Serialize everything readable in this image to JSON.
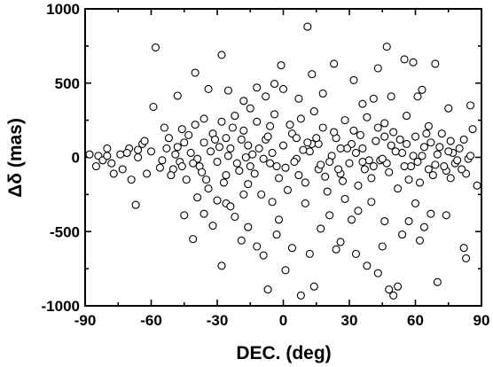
{
  "chart_data": {
    "type": "scatter",
    "title": "",
    "xlabel": "DEC. (deg)",
    "ylabel": "Δδ (mas)",
    "xlim": [
      -90,
      90
    ],
    "ylim": [
      -1000,
      1000
    ],
    "xticks": [
      "-90",
      "-60",
      "-30",
      "0",
      "30",
      "60",
      "90"
    ],
    "yticks": [
      "1000",
      "500",
      "0",
      "-500",
      "-1000"
    ],
    "xtick_values": [
      -90,
      -60,
      -30,
      0,
      30,
      60,
      90
    ],
    "ytick_values": [
      1000,
      500,
      0,
      -500,
      -1000
    ],
    "marker": "open-circle",
    "grid": false,
    "series": [
      {
        "points": [
          [
            -58,
            740
          ],
          [
            11,
            880
          ],
          [
            47,
            745
          ],
          [
            -28,
            690
          ],
          [
            55,
            660
          ],
          [
            69,
            630
          ],
          [
            23,
            630
          ],
          [
            -1,
            620
          ],
          [
            -40,
            570
          ],
          [
            43,
            600
          ],
          [
            59,
            640
          ],
          [
            -4,
            495
          ],
          [
            32,
            520
          ],
          [
            -12,
            470
          ],
          [
            -25,
            450
          ],
          [
            -48,
            415
          ],
          [
            49,
            410
          ],
          [
            13,
            560
          ],
          [
            -18,
            380
          ],
          [
            7,
            395
          ],
          [
            63,
            455
          ],
          [
            85,
            350
          ],
          [
            36,
            360
          ],
          [
            -59,
            340
          ],
          [
            -34,
            460
          ],
          [
            18,
            430
          ],
          [
            0,
            460
          ],
          [
            -8,
            410
          ],
          [
            41,
            395
          ],
          [
            61,
            410
          ],
          [
            75,
            330
          ],
          [
            -15,
            330
          ],
          [
            -85,
            -60
          ],
          [
            -78,
            -40
          ],
          [
            -80,
            60
          ],
          [
            -74,
            20
          ],
          [
            -70,
            60
          ],
          [
            -64,
            90
          ],
          [
            -84,
            10
          ],
          [
            -77,
            -110
          ],
          [
            -69,
            -150
          ],
          [
            -71,
            30
          ],
          [
            -82,
            -20
          ],
          [
            -66,
            0
          ],
          [
            -73,
            -80
          ],
          [
            -62,
            -110
          ],
          [
            -66,
            50
          ],
          [
            -80,
            10
          ],
          [
            -63,
            110
          ],
          [
            -88,
            20
          ],
          [
            -60,
            40
          ],
          [
            -55,
            -20
          ],
          [
            -52,
            130
          ],
          [
            -50,
            -80
          ],
          [
            -48,
            70
          ],
          [
            -46,
            190
          ],
          [
            -44,
            -150
          ],
          [
            -42,
            30
          ],
          [
            -40,
            220
          ],
          [
            -38,
            -60
          ],
          [
            -36,
            100
          ],
          [
            -34,
            -210
          ],
          [
            -32,
            160
          ],
          [
            -30,
            -30
          ],
          [
            -28,
            240
          ],
          [
            -26,
            -120
          ],
          [
            -24,
            60
          ],
          [
            -22,
            280
          ],
          [
            -20,
            -90
          ],
          [
            -18,
            180
          ],
          [
            -16,
            -180
          ],
          [
            -14,
            20
          ],
          [
            -12,
            240
          ],
          [
            -10,
            -250
          ],
          [
            -8,
            120
          ],
          [
            -6,
            -40
          ],
          [
            -4,
            290
          ],
          [
            -2,
            -140
          ],
          [
            0,
            80
          ],
          [
            2,
            -220
          ],
          [
            4,
            160
          ],
          [
            6,
            -10
          ],
          [
            8,
            260
          ],
          [
            10,
            -170
          ],
          [
            12,
            40
          ],
          [
            14,
            310
          ],
          [
            16,
            -80
          ],
          [
            18,
            200
          ],
          [
            20,
            -230
          ],
          [
            22,
            10
          ],
          [
            24,
            130
          ],
          [
            26,
            -110
          ],
          [
            28,
            250
          ],
          [
            30,
            -40
          ],
          [
            32,
            180
          ],
          [
            34,
            -190
          ],
          [
            36,
            60
          ],
          [
            38,
            270
          ],
          [
            40,
            -140
          ],
          [
            42,
            110
          ],
          [
            44,
            -20
          ],
          [
            46,
            230
          ],
          [
            48,
            -100
          ],
          [
            50,
            170
          ],
          [
            52,
            -210
          ],
          [
            54,
            30
          ],
          [
            56,
            280
          ],
          [
            58,
            -60
          ],
          [
            60,
            140
          ],
          [
            62,
            -170
          ],
          [
            64,
            70
          ],
          [
            66,
            210
          ],
          [
            68,
            -120
          ],
          [
            70,
            20
          ],
          [
            72,
            160
          ],
          [
            74,
            -90
          ],
          [
            76,
            110
          ],
          [
            78,
            -40
          ],
          [
            80,
            60
          ],
          [
            82,
            120
          ],
          [
            84,
            -10
          ],
          [
            86,
            190
          ],
          [
            88,
            -190
          ],
          [
            -53,
            60
          ],
          [
            -47,
            -30
          ],
          [
            -43,
            150
          ],
          [
            -37,
            -100
          ],
          [
            -33,
            40
          ],
          [
            -27,
            -170
          ],
          [
            -23,
            200
          ],
          [
            -17,
            0
          ],
          [
            -13,
            -110
          ],
          [
            -7,
            140
          ],
          [
            -3,
            -60
          ],
          [
            3,
            220
          ],
          [
            7,
            -120
          ],
          [
            13,
            90
          ],
          [
            17,
            -50
          ],
          [
            23,
            170
          ],
          [
            27,
            -160
          ],
          [
            33,
            30
          ],
          [
            37,
            -80
          ],
          [
            43,
            200
          ],
          [
            47,
            -40
          ],
          [
            53,
            120
          ],
          [
            57,
            -150
          ],
          [
            63,
            10
          ],
          [
            67,
            100
          ],
          [
            73,
            -60
          ],
          [
            77,
            30
          ],
          [
            83,
            -110
          ],
          [
            -51,
            -120
          ],
          [
            -45,
            100
          ],
          [
            -39,
            -10
          ],
          [
            -31,
            120
          ],
          [
            -21,
            -40
          ],
          [
            -11,
            60
          ],
          [
            1,
            -70
          ],
          [
            11,
            100
          ],
          [
            21,
            -30
          ],
          [
            31,
            90
          ],
          [
            41,
            -60
          ],
          [
            51,
            40
          ],
          [
            61,
            -30
          ],
          [
            71,
            70
          ],
          [
            81,
            -80
          ],
          [
            -49,
            20
          ],
          [
            -41,
            -40
          ],
          [
            -29,
            70
          ],
          [
            -19,
            120
          ],
          [
            -9,
            -10
          ],
          [
            9,
            50
          ],
          [
            19,
            -130
          ],
          [
            29,
            60
          ],
          [
            39,
            -20
          ],
          [
            49,
            80
          ],
          [
            59,
            10
          ],
          [
            69,
            -50
          ],
          [
            79,
            -20
          ],
          [
            -54,
            200
          ],
          [
            -46,
            -60
          ],
          [
            -36,
            260
          ],
          [
            -26,
            130
          ],
          [
            -16,
            80
          ],
          [
            -6,
            210
          ],
          [
            6,
            130
          ],
          [
            16,
            90
          ],
          [
            26,
            60
          ],
          [
            36,
            -30
          ],
          [
            46,
            140
          ],
          [
            56,
            90
          ],
          [
            66,
            -80
          ],
          [
            76,
            -140
          ],
          [
            -56,
            -70
          ],
          [
            -35,
            -150
          ],
          [
            -25,
            10
          ],
          [
            -15,
            -60
          ],
          [
            -5,
            30
          ],
          [
            5,
            -30
          ],
          [
            15,
            130
          ],
          [
            25,
            -80
          ],
          [
            35,
            150
          ],
          [
            45,
            -10
          ],
          [
            55,
            -60
          ],
          [
            65,
            160
          ],
          [
            75,
            40
          ],
          [
            85,
            10
          ],
          [
            -45,
            -390
          ],
          [
            -41,
            -550
          ],
          [
            -36,
            -380
          ],
          [
            -32,
            -460
          ],
          [
            -28,
            -730
          ],
          [
            -26,
            -310
          ],
          [
            -22,
            -400
          ],
          [
            -19,
            -560
          ],
          [
            -16,
            -470
          ],
          [
            -12,
            -600
          ],
          [
            -9,
            -660
          ],
          [
            -7,
            -890
          ],
          [
            -2,
            -420
          ],
          [
            1,
            -760
          ],
          [
            4,
            -610
          ],
          [
            8,
            -930
          ],
          [
            12,
            -650
          ],
          [
            14,
            -870
          ],
          [
            17,
            -480
          ],
          [
            21,
            -390
          ],
          [
            24,
            -620
          ],
          [
            26,
            -570
          ],
          [
            31,
            -420
          ],
          [
            34,
            -360
          ],
          [
            38,
            -730
          ],
          [
            43,
            -780
          ],
          [
            45,
            -600
          ],
          [
            48,
            -890
          ],
          [
            50,
            -930
          ],
          [
            52,
            -870
          ],
          [
            54,
            -520
          ],
          [
            57,
            -430
          ],
          [
            62,
            -560
          ],
          [
            64,
            -470
          ],
          [
            70,
            -840
          ],
          [
            74,
            -390
          ],
          [
            82,
            -610
          ],
          [
            83,
            -680
          ],
          [
            -67,
            -320
          ],
          [
            -39,
            -270
          ],
          [
            -30,
            -290
          ],
          [
            -24,
            -330
          ],
          [
            -18,
            -250
          ],
          [
            -5,
            -300
          ],
          [
            10,
            -310
          ],
          [
            28,
            -280
          ],
          [
            40,
            -300
          ],
          [
            60,
            -310
          ],
          [
            46,
            -430
          ],
          [
            -3,
            -520
          ],
          [
            33,
            -650
          ],
          [
            67,
            -380
          ]
        ]
      }
    ]
  }
}
